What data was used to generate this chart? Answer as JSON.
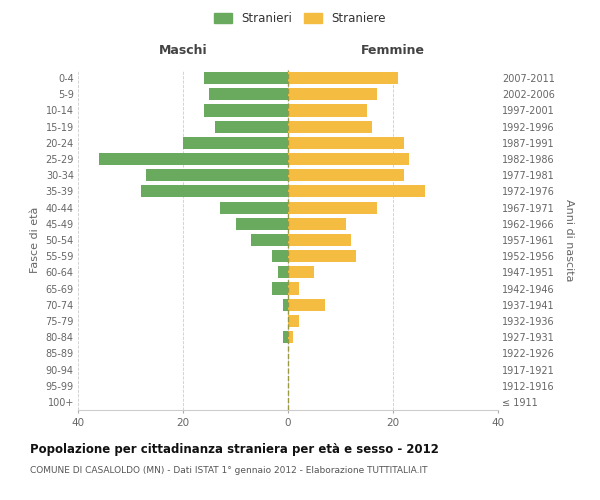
{
  "age_groups": [
    "100+",
    "95-99",
    "90-94",
    "85-89",
    "80-84",
    "75-79",
    "70-74",
    "65-69",
    "60-64",
    "55-59",
    "50-54",
    "45-49",
    "40-44",
    "35-39",
    "30-34",
    "25-29",
    "20-24",
    "15-19",
    "10-14",
    "5-9",
    "0-4"
  ],
  "birth_years": [
    "≤ 1911",
    "1912-1916",
    "1917-1921",
    "1922-1926",
    "1927-1931",
    "1932-1936",
    "1937-1941",
    "1942-1946",
    "1947-1951",
    "1952-1956",
    "1957-1961",
    "1962-1966",
    "1967-1971",
    "1972-1976",
    "1977-1981",
    "1982-1986",
    "1987-1991",
    "1992-1996",
    "1997-2001",
    "2002-2006",
    "2007-2011"
  ],
  "maschi": [
    0,
    0,
    0,
    0,
    1,
    0,
    1,
    3,
    2,
    3,
    7,
    10,
    13,
    28,
    27,
    36,
    20,
    14,
    16,
    15,
    16
  ],
  "femmine": [
    0,
    0,
    0,
    0,
    1,
    2,
    7,
    2,
    5,
    13,
    12,
    11,
    17,
    26,
    22,
    23,
    22,
    16,
    15,
    17,
    21
  ],
  "maschi_color": "#6aaa5e",
  "femmine_color": "#f5bc42",
  "background_color": "#ffffff",
  "grid_color": "#cccccc",
  "title": "Popolazione per cittadinanza straniera per età e sesso - 2012",
  "subtitle": "COMUNE DI CASALOLDO (MN) - Dati ISTAT 1° gennaio 2012 - Elaborazione TUTTITALIA.IT",
  "ylabel_left": "Fasce di età",
  "ylabel_right": "Anni di nascita",
  "xlabel_maschi": "Maschi",
  "xlabel_femmine": "Femmine",
  "legend_maschi": "Stranieri",
  "legend_femmine": "Straniere",
  "xlim": 40,
  "bar_height": 0.75
}
